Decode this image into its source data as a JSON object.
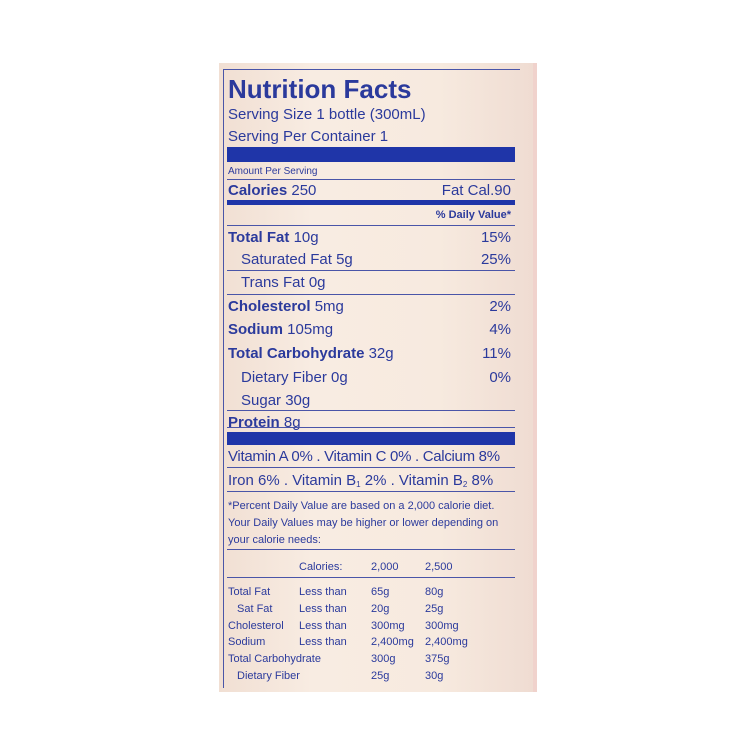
{
  "title": "Nutrition Facts",
  "serving_size": "Serving Size 1 bottle (300mL)",
  "servings_per_container": "Serving Per Container 1",
  "amount_per_serving": "Amount Per Serving",
  "calories": {
    "label": "Calories",
    "value": "250",
    "fat_cal": "Fat Cal.90"
  },
  "daily_value_header": "% Daily Value*",
  "nutrients": [
    {
      "label": "Total Fat",
      "amount": "10g",
      "dv": "15%"
    },
    {
      "label": "Saturated Fat",
      "amount": "5g",
      "dv": "25%"
    },
    {
      "label": "Trans Fat",
      "amount": "0g",
      "dv": ""
    },
    {
      "label": "Cholesterol",
      "amount": "5mg",
      "dv": "2%"
    },
    {
      "label": "Sodium",
      "amount": "105mg",
      "dv": "4%"
    },
    {
      "label": "Total Carbohydrate",
      "amount": "32g",
      "dv": "11%"
    },
    {
      "label": "Dietary Fiber",
      "amount": "0g",
      "dv": "0%"
    },
    {
      "label": "Sugar",
      "amount": "30g",
      "dv": ""
    },
    {
      "label": "Protein",
      "amount": "8g",
      "dv": ""
    }
  ],
  "vitamins": {
    "line1": "Vitamin A 0% . Vitamin C 0% . Calcium 8%",
    "iron": "Iron 6% . Vitamin B",
    "b1_sub": "1",
    "b1_rest": " 2% . Vitamin B",
    "b2_sub": "2",
    "b2_rest": " 8%"
  },
  "footnote": [
    "*Percent Daily Value are based on a 2,000 calorie diet.",
    "Your Daily Values may be higher or lower depending on",
    "your calorie needs:"
  ],
  "dv_table": {
    "header": [
      "Calories:",
      "2,000",
      "2,500"
    ],
    "rows": [
      [
        "Total Fat",
        "Less than",
        "65g",
        "80g"
      ],
      [
        "Sat Fat",
        "Less than",
        "20g",
        "25g"
      ],
      [
        "Cholesterol",
        "Less than",
        "300mg",
        "300mg"
      ],
      [
        "Sodium",
        "Less than",
        "2,400mg",
        "2,400mg"
      ],
      [
        "Total Carbohydrate",
        "",
        "300g",
        "375g"
      ],
      [
        "Dietary Fiber",
        "",
        "25g",
        "30g"
      ]
    ]
  },
  "colors": {
    "ink": "#2b3a9c",
    "bar": "#1f35a8",
    "background": "#f7eadf"
  }
}
